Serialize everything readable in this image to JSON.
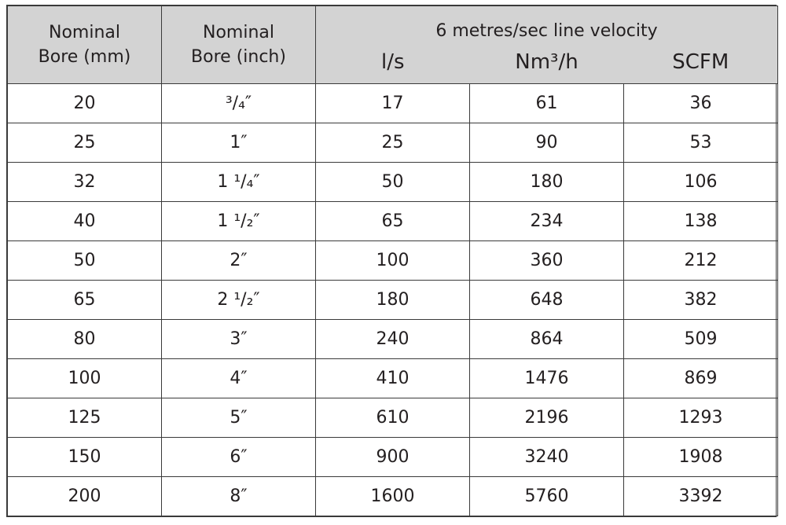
{
  "headers": {
    "bore_mm": [
      "Nominal",
      "Bore (mm)"
    ],
    "bore_inch": [
      "Nominal",
      "Bore (inch)"
    ],
    "group": "6 metres/sec line velocity",
    "sub": [
      "l/s",
      "Nm³/h",
      "SCFM"
    ]
  },
  "rows": [
    [
      "20",
      "³/₄″",
      "17",
      "61",
      "36"
    ],
    [
      "25",
      "1″",
      "25",
      "90",
      "53"
    ],
    [
      "32",
      "1 ¹/₄″",
      "50",
      "180",
      "106"
    ],
    [
      "40",
      "1 ¹/₂″",
      "65",
      "234",
      "138"
    ],
    [
      "50",
      "2″",
      "100",
      "360",
      "212"
    ],
    [
      "65",
      "2 ¹/₂″",
      "180",
      "648",
      "382"
    ],
    [
      "80",
      "3″",
      "240",
      "864",
      "509"
    ],
    [
      "100",
      "4″",
      "410",
      "1476",
      "869"
    ],
    [
      "125",
      "5″",
      "610",
      "2196",
      "1293"
    ],
    [
      "150",
      "6″",
      "900",
      "3240",
      "1908"
    ],
    [
      "200",
      "8″",
      "1600",
      "5760",
      "3392"
    ]
  ],
  "colors": {
    "header_bg": "#d3d3d3",
    "border": "#3a3a3a",
    "text": "#231f20"
  }
}
